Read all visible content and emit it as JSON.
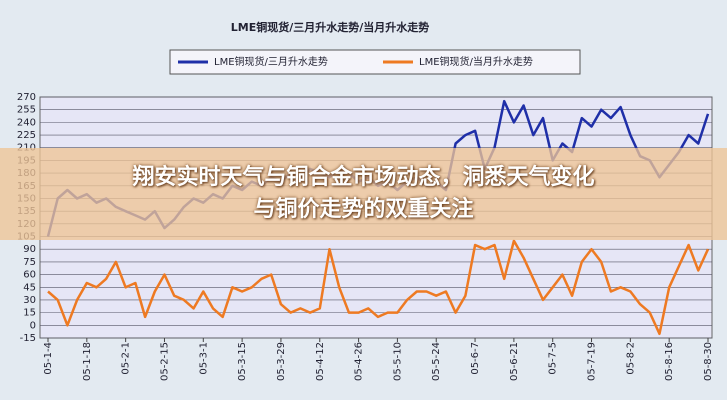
{
  "chart_data": {
    "type": "line",
    "title": "LME铜现货/三月升水走势/当月升水走势",
    "categories": [
      "05-1-4",
      null,
      null,
      null,
      "05-1-18",
      null,
      null,
      null,
      "05-2-1",
      null,
      null,
      null,
      "05-2-15",
      null,
      null,
      null,
      "05-3-1",
      null,
      null,
      null,
      "05-3-15",
      null,
      null,
      null,
      "05-3-29",
      null,
      null,
      null,
      "05-4-12",
      null,
      null,
      null,
      "05-4-26",
      null,
      null,
      null,
      "05-5-10",
      null,
      null,
      null,
      "05-5-24",
      null,
      null,
      null,
      "05-6-7",
      null,
      null,
      null,
      "05-6-21",
      null,
      null,
      null,
      "05-7-5",
      null,
      null,
      null,
      "05-7-19",
      null,
      null,
      null,
      "05-8-2",
      null,
      null,
      null,
      "05-8-16",
      null,
      null,
      null,
      "05-8-30"
    ],
    "series": [
      {
        "name": "LME铜现货/三月升水走势",
        "color": "#1f2fa8",
        "values": [
          105,
          150,
          160,
          150,
          155,
          145,
          150,
          140,
          135,
          130,
          125,
          135,
          115,
          125,
          140,
          150,
          145,
          155,
          150,
          165,
          160,
          170,
          165,
          175,
          170,
          180,
          175,
          185,
          180,
          175,
          185,
          180,
          170,
          175,
          165,
          170,
          160,
          170,
          175,
          165,
          170,
          160,
          215,
          225,
          230,
          185,
          210,
          265,
          240,
          260,
          225,
          245,
          195,
          215,
          205,
          245,
          235,
          255,
          245,
          258,
          225,
          200,
          195,
          175,
          190,
          205,
          225,
          215,
          250
        ]
      },
      {
        "name": "LME铜现货/当月升水走势",
        "color": "#ee7a22",
        "values": [
          40,
          30,
          0,
          30,
          50,
          45,
          55,
          75,
          45,
          50,
          10,
          40,
          60,
          35,
          30,
          20,
          40,
          20,
          10,
          45,
          40,
          45,
          55,
          60,
          25,
          15,
          20,
          15,
          20,
          90,
          45,
          15,
          15,
          20,
          10,
          15,
          15,
          30,
          40,
          40,
          35,
          40,
          15,
          35,
          95,
          90,
          95,
          55,
          100,
          80,
          55,
          30,
          45,
          60,
          35,
          75,
          90,
          75,
          40,
          45,
          40,
          25,
          15,
          -10,
          45,
          70,
          95,
          65,
          90
        ]
      }
    ],
    "ylim": [
      -15,
      270
    ],
    "yticks": [
      -15,
      0,
      15,
      30,
      45,
      60,
      75,
      90,
      105,
      120,
      135,
      150,
      165,
      180,
      195,
      210,
      225,
      240,
      255,
      270
    ],
    "grid": true
  },
  "banner": {
    "lines": [
      "翔安实时天气与铜合金市场动态，洞悉天气变化",
      "与铜价走势的双重关注"
    ]
  }
}
